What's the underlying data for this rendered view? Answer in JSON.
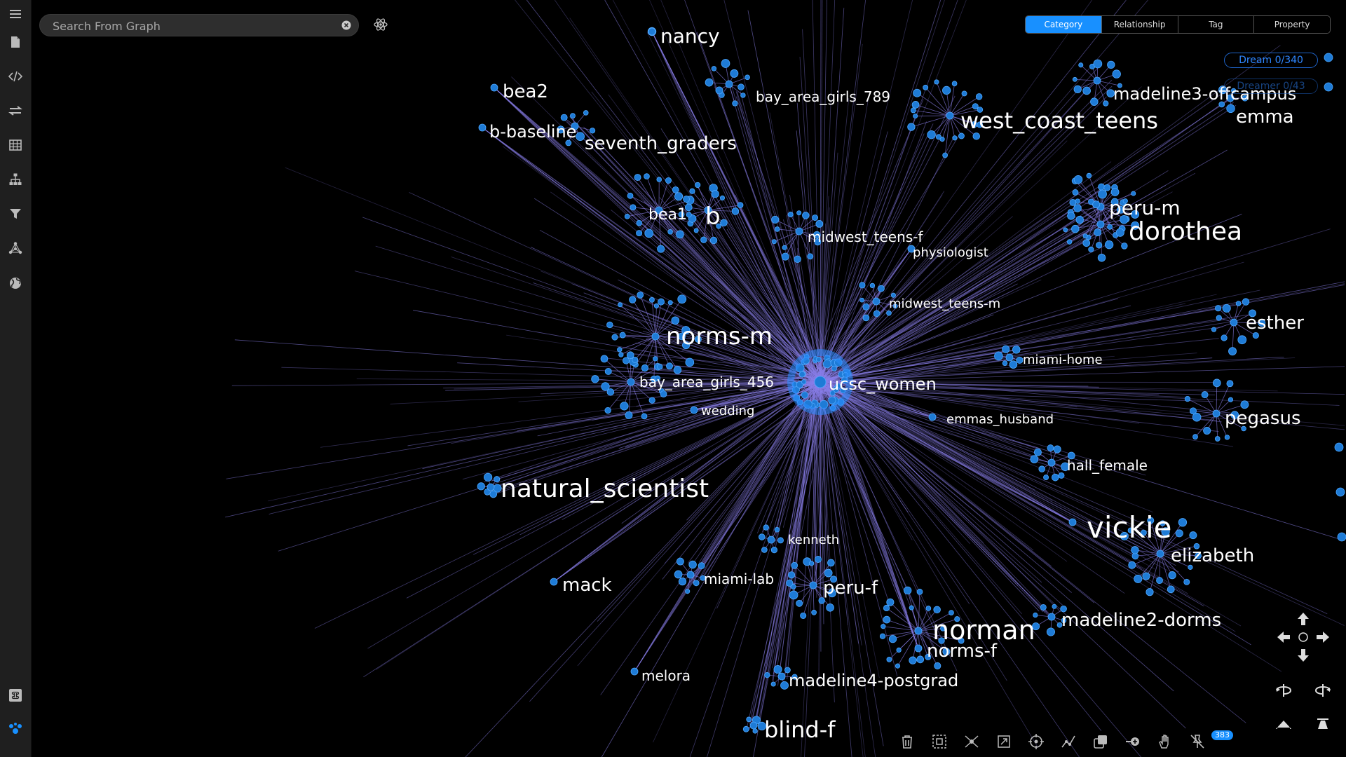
{
  "sidebar": {
    "items": [
      {
        "name": "menu-icon"
      },
      {
        "name": "document-icon"
      },
      {
        "name": "code-icon"
      },
      {
        "name": "transfer-icon"
      },
      {
        "name": "table-icon"
      },
      {
        "name": "hierarchy-icon"
      },
      {
        "name": "filter-icon"
      },
      {
        "name": "network-icon"
      },
      {
        "name": "globe-icon"
      }
    ],
    "bottom_items": [
      {
        "name": "command-icon"
      },
      {
        "name": "graph-logo-icon"
      }
    ]
  },
  "search": {
    "placeholder": "Search From Graph",
    "value": ""
  },
  "tabs": [
    {
      "label": "Category",
      "active": true
    },
    {
      "label": "Relationship",
      "active": false
    },
    {
      "label": "Tag",
      "active": false
    },
    {
      "label": "Property",
      "active": false
    }
  ],
  "stats": {
    "dream": "Dream 0/340",
    "dreamer": "Dreamer 0/43"
  },
  "graph": {
    "edge_color": "#8a7fe8",
    "node_color": "#1e7bd6",
    "hub_label": "ucsc_women",
    "labels": [
      {
        "id": "nancy",
        "text": "nancy"
      },
      {
        "id": "bea2",
        "text": "bea2"
      },
      {
        "id": "bay_area_girls_789",
        "text": "bay_area_girls_789"
      },
      {
        "id": "b-baseline",
        "text": "b-baseline"
      },
      {
        "id": "seventh_graders",
        "text": "seventh_graders"
      },
      {
        "id": "madeline3-offcampus",
        "text": "madeline3-offcampus"
      },
      {
        "id": "west_coast_teens",
        "text": "west_coast_teens"
      },
      {
        "id": "emma",
        "text": "emma"
      },
      {
        "id": "bea1",
        "text": "bea1"
      },
      {
        "id": "b",
        "text": "b"
      },
      {
        "id": "peru-m",
        "text": "peru-m"
      },
      {
        "id": "dorothea",
        "text": "dorothea"
      },
      {
        "id": "midwest_teens-f",
        "text": "midwest_teens-f"
      },
      {
        "id": "physiologist",
        "text": "physiologist"
      },
      {
        "id": "midwest_teens-m",
        "text": "midwest_teens-m"
      },
      {
        "id": "esther",
        "text": "esther"
      },
      {
        "id": "norms-m",
        "text": "norms-m"
      },
      {
        "id": "miami-home",
        "text": "miami-home"
      },
      {
        "id": "bay_area_girls_456",
        "text": "bay_area_girls_456"
      },
      {
        "id": "ucsc_women",
        "text": "ucsc_women"
      },
      {
        "id": "wedding",
        "text": "wedding"
      },
      {
        "id": "emmas_husband",
        "text": "emmas_husband"
      },
      {
        "id": "pegasus",
        "text": "pegasus"
      },
      {
        "id": "hall_female",
        "text": "hall_female"
      },
      {
        "id": "natural_scientist",
        "text": "natural_scientist"
      },
      {
        "id": "vickie",
        "text": "vickie"
      },
      {
        "id": "kenneth",
        "text": "kenneth"
      },
      {
        "id": "elizabeth",
        "text": "elizabeth"
      },
      {
        "id": "miami-lab",
        "text": "miami-lab"
      },
      {
        "id": "peru-f",
        "text": "peru-f"
      },
      {
        "id": "mack",
        "text": "mack"
      },
      {
        "id": "madeline2-dorms",
        "text": "madeline2-dorms"
      },
      {
        "id": "norman",
        "text": "norman"
      },
      {
        "id": "norms-f",
        "text": "norms-f"
      },
      {
        "id": "melora",
        "text": "melora"
      },
      {
        "id": "madeline4-postgrad",
        "text": "madeline4-postgrad"
      },
      {
        "id": "blind-f",
        "text": "blind-f"
      }
    ]
  },
  "navigation": {
    "buttons": [
      {
        "name": "pan-up-button"
      },
      {
        "name": "pan-left-button"
      },
      {
        "name": "reset-center-button"
      },
      {
        "name": "pan-right-button"
      },
      {
        "name": "pan-down-button"
      },
      {
        "name": "rotate-left-button"
      },
      {
        "name": "rotate-right-button"
      },
      {
        "name": "tilt-down-button"
      },
      {
        "name": "tilt-up-button"
      }
    ]
  },
  "toolbar": {
    "tools": [
      {
        "name": "delete-tool"
      },
      {
        "name": "select-box-tool"
      },
      {
        "name": "expand-tool"
      },
      {
        "name": "fit-view-tool"
      },
      {
        "name": "focus-tool"
      },
      {
        "name": "path-tool"
      },
      {
        "name": "copy-tool"
      },
      {
        "name": "link-add-tool"
      },
      {
        "name": "hand-tool"
      },
      {
        "name": "unpin-tool"
      }
    ],
    "pin_count": "383"
  }
}
